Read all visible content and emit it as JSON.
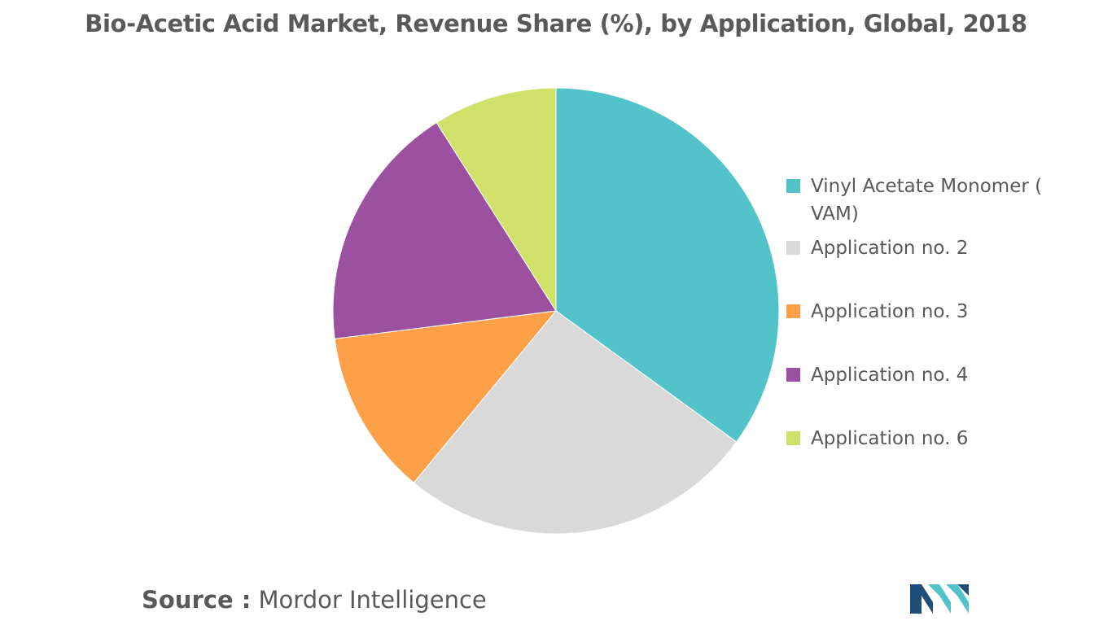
{
  "chart_data": {
    "type": "pie",
    "title": "Bio-Acetic Acid Market, Revenue Share (%), by Application, Global, 2018",
    "categories": [
      "Vinyl Acetate Monomer ( VAM)",
      "Application no. 2",
      "Application no. 3",
      "Application no. 4",
      "Application no. 6"
    ],
    "values": [
      35,
      26,
      12,
      18,
      9
    ],
    "colors": [
      "#52c4c9",
      "#d9d9d9",
      "#fda047",
      "#9c51a0",
      "#cfe168"
    ],
    "legend_position": "right"
  },
  "legend": {
    "item0": " Vinyl Acetate Monomer ( VAM)",
    "item1": "Application no. 2",
    "item2": "Application no. 3",
    "item3": "Application no. 4",
    "item4": "Application no. 6"
  },
  "source": {
    "label": "Source :",
    "value": "Mordor Intelligence"
  },
  "logo": {
    "icon": "mordor-intelligence-logo",
    "colors": [
      "#1f4e79",
      "#52c4c9"
    ]
  }
}
